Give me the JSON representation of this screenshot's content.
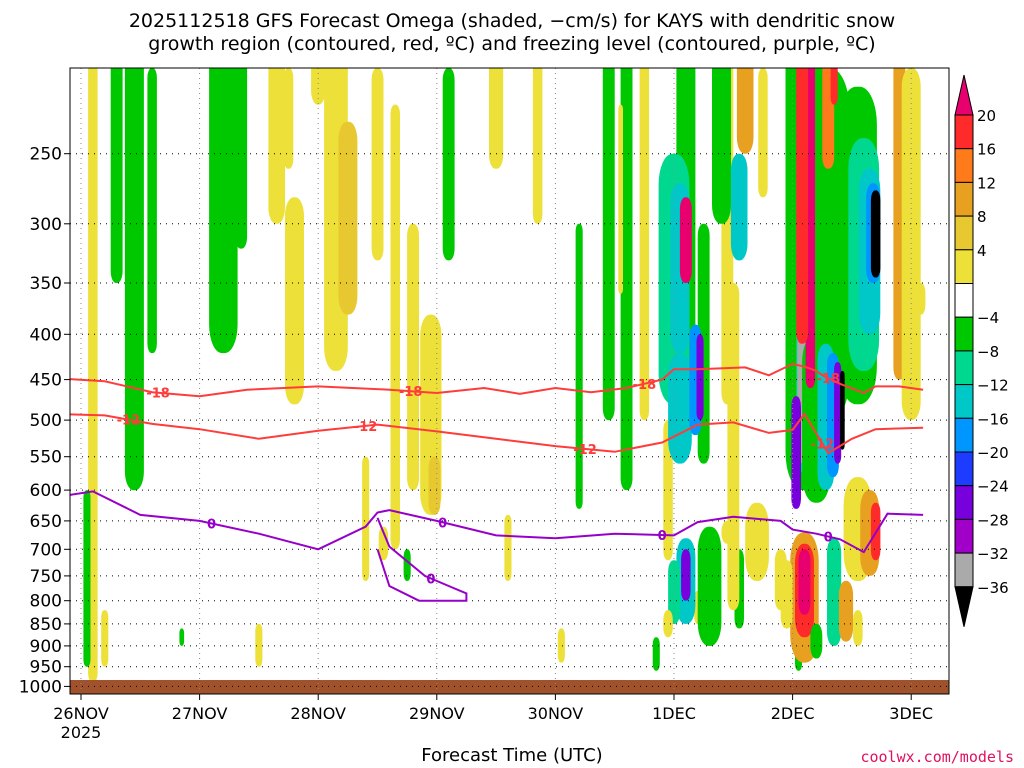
{
  "title_line1": "2025112518 GFS Forecast Omega (shaded, −cm/s) for KAYS with dendritic snow",
  "title_line2": "growth region (contoured, red, ºC) and freezing level (contoured, purple, ºC)",
  "credit": "coolwx.com/models",
  "chart_data": {
    "type": "heatmap",
    "title": "2025112518 GFS Forecast Omega (shaded, −cm/s) for KAYS with dendritic snow growth region (contoured, red, ºC) and freezing level (contoured, purple, ºC)",
    "xlabel": "Forecast Time (UTC)",
    "ylabel": "",
    "x_ticks": [
      "26NOV",
      "27NOV",
      "28NOV",
      "29NOV",
      "30NOV",
      "1DEC",
      "2DEC",
      "3DEC"
    ],
    "x_tick_sub": "2025",
    "x_range_days": [
      -0.25,
      7.1
    ],
    "y_ticks": [
      "250",
      "300",
      "350",
      "400",
      "450",
      "500",
      "550",
      "600",
      "650",
      "700",
      "750",
      "800",
      "850",
      "900",
      "950",
      "1000"
    ],
    "y_range_hpa": [
      200,
      1020
    ],
    "colorbar_ticks": [
      "20",
      "16",
      "12",
      "8",
      "4",
      "−4",
      "−8",
      "−12",
      "−16",
      "−20",
      "−24",
      "−28",
      "−32",
      "−36"
    ],
    "colorbar_colors": [
      "#e8006e",
      "#ff2a2a",
      "#ff7a1a",
      "#e8a020",
      "#e8c830",
      "#ede038",
      "#ffffff",
      "#00c800",
      "#00d890",
      "#00c8c8",
      "#0096ff",
      "#1e3cff",
      "#7800dc",
      "#a000c8",
      "#aaaaaa",
      "#000000"
    ],
    "contours": [
      {
        "name": "dgz_minus18",
        "level": -18,
        "color": "#ff3c3c",
        "x": [
          -0.25,
          0.2,
          0.6,
          1,
          1.4,
          2,
          2.6,
          3,
          3.4,
          3.7,
          4,
          4.3,
          4.6,
          4.9,
          5,
          5.2,
          5.6,
          5.8,
          6,
          6.1,
          6.2,
          6.25,
          6.4,
          6.6,
          6.7,
          6.9,
          7.1
        ],
        "p": [
          448,
          452,
          465,
          470,
          462,
          458,
          462,
          466,
          460,
          467,
          460,
          465,
          460,
          450,
          438,
          438,
          436,
          445,
          432,
          435,
          440,
          445,
          455,
          466,
          458,
          458,
          462
        ],
        "labels": [
          {
            "x": 0.65,
            "text": "-18"
          },
          {
            "x": 2.78,
            "text": "-18"
          },
          {
            "x": 4.75,
            "text": "-18"
          },
          {
            "x": 6.3,
            "text": "-18"
          }
        ]
      },
      {
        "name": "dgz_minus12",
        "level": -12,
        "color": "#ff3c3c",
        "x": [
          -0.25,
          0.2,
          0.6,
          1,
          1.5,
          2,
          2.5,
          3,
          3.5,
          4,
          4.5,
          4.9,
          5.2,
          5.5,
          5.8,
          6,
          6.1,
          6.3,
          6.5,
          6.7,
          7.1
        ],
        "p": [
          492,
          494,
          505,
          512,
          525,
          514,
          506,
          515,
          525,
          535,
          543,
          530,
          506,
          503,
          517,
          513,
          492,
          545,
          525,
          512,
          510
        ],
        "labels": [
          {
            "x": 0.4,
            "text": "-12"
          },
          {
            "x": 2.4,
            "text": "-12"
          },
          {
            "x": 4.25,
            "text": "-12"
          },
          {
            "x": 6.25,
            "text": "-12"
          }
        ]
      },
      {
        "name": "freezing_level",
        "level": 0,
        "color": "#9600c8",
        "x": [
          -0.25,
          0.1,
          0.5,
          1,
          1.5,
          2,
          2.4,
          2.5,
          2.6,
          3,
          3.5,
          4,
          4.5,
          5,
          5.2,
          5.5,
          5.9,
          6,
          6.2,
          6.4,
          6.6,
          6.8,
          7.1
        ],
        "p": [
          612,
          602,
          640,
          650,
          672,
          700,
          660,
          636,
          632,
          650,
          675,
          680,
          672,
          675,
          652,
          643,
          650,
          665,
          672,
          682,
          705,
          638,
          640
        ],
        "labels": [
          {
            "x": 1.1,
            "text": "0"
          },
          {
            "x": 3.05,
            "text": "0"
          },
          {
            "x": 4.9,
            "text": "0"
          },
          {
            "x": 6.3,
            "text": "0"
          }
        ]
      },
      {
        "name": "freezing_level_lobe",
        "level": 0,
        "color": "#9600c8",
        "x": [
          2.5,
          2.6,
          2.9,
          3.1,
          3.25,
          3.25,
          3.1,
          2.85,
          2.6,
          2.5
        ],
        "p": [
          645,
          695,
          750,
          770,
          785,
          800,
          800,
          800,
          770,
          700
        ],
        "labels": [
          {
            "x": 2.95,
            "text": "0"
          }
        ]
      }
    ]
  }
}
